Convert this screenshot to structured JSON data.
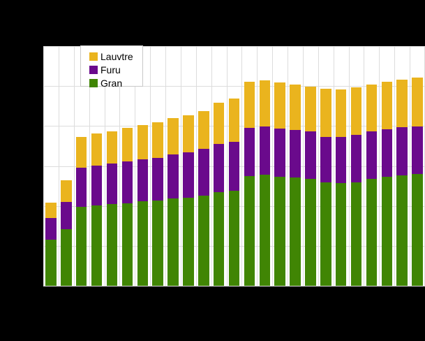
{
  "window": {
    "background_color": "#000000",
    "plot_background_color": "#ffffff",
    "gridline_color": "#dcdcdc",
    "legend_border_color": "#c8c8c8"
  },
  "legend": {
    "items": [
      {
        "label": "Lauvtre",
        "color": "#eab41e"
      },
      {
        "label": "Furu",
        "color": "#6a0a8c"
      },
      {
        "label": "Gran",
        "color": "#408504"
      }
    ]
  },
  "chart_data": {
    "type": "bar",
    "stacked": true,
    "title": "",
    "xlabel": "",
    "ylabel": "",
    "x_tick_labels_visible": false,
    "y_tick_labels_visible": false,
    "y_unit_note": "axis unlabeled in pixels; values estimated in gridline intervals",
    "ylim": [
      0,
      6
    ],
    "bar_count": 25,
    "grid": {
      "horizontal_divisions": 6,
      "vertical_divisions": 25,
      "color": "#dcdcdc"
    },
    "legend_position": "top-left-inside",
    "series": [
      {
        "name": "Gran",
        "color": "#408504",
        "values": [
          1.16,
          1.42,
          1.98,
          2.01,
          2.05,
          2.07,
          2.12,
          2.13,
          2.18,
          2.2,
          2.26,
          2.34,
          2.38,
          2.75,
          2.78,
          2.73,
          2.71,
          2.68,
          2.59,
          2.58,
          2.59,
          2.68,
          2.73,
          2.77,
          2.8
        ]
      },
      {
        "name": "Furu",
        "color": "#6a0a8c",
        "values": [
          0.53,
          0.68,
          0.98,
          1.0,
          1.01,
          1.04,
          1.05,
          1.08,
          1.11,
          1.14,
          1.17,
          1.22,
          1.22,
          1.21,
          1.21,
          1.21,
          1.19,
          1.18,
          1.13,
          1.15,
          1.18,
          1.18,
          1.18,
          1.2,
          1.19
        ]
      },
      {
        "name": "Lauvtre",
        "color": "#eab41e",
        "values": [
          0.4,
          0.54,
          0.77,
          0.8,
          0.81,
          0.84,
          0.86,
          0.89,
          0.91,
          0.93,
          0.95,
          1.03,
          1.09,
          1.14,
          1.15,
          1.15,
          1.14,
          1.13,
          1.21,
          1.19,
          1.2,
          1.18,
          1.2,
          1.19,
          1.23
        ]
      }
    ]
  }
}
